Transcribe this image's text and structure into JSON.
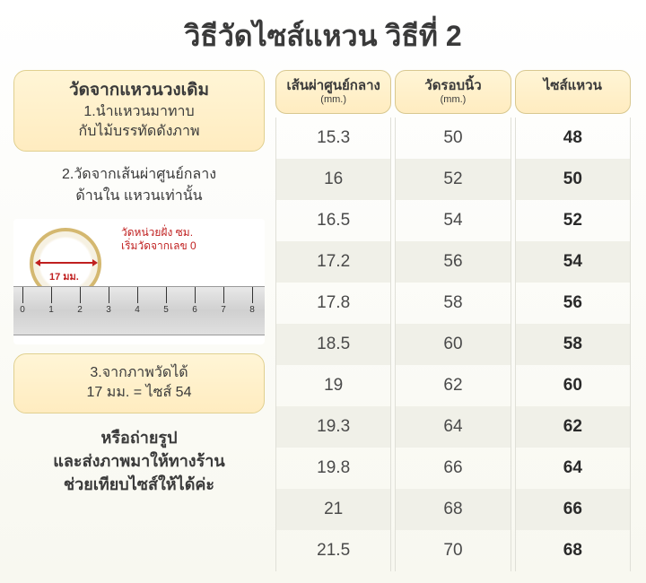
{
  "title": "วิธีวัดไซส์แหวน วิธีที่ 2",
  "left": {
    "block1_title": "วัดจากแหวนวงเดิม",
    "block1_line1": "1.นำแหวนมาทาบ",
    "block1_line2": "กับไม้บรรทัดดังภาพ",
    "step2_line1": "2.วัดจากเส้นผ่าศูนย์กลาง",
    "step2_line2": "ด้านใน แหวนเท่านั้น",
    "ruler_label_line1": "วัดหน่วยฝั่ง ซม.",
    "ruler_label_line2": "เริ่มวัดจากเลข 0",
    "ring_mm": "17 มม.",
    "block3_line1": "3.จากภาพวัดได้",
    "block3_line2": "17 มม. = ไซส์ 54",
    "final_line1": "หรือถ่ายรูป",
    "final_line2": "และส่งภาพมาให้ทางร้าน",
    "final_line3": "ช่วยเทียบไซส์ให้ได้ค่ะ"
  },
  "table": {
    "headers": [
      {
        "main": "เส้นผ่าศูนย์กลาง",
        "sub": "(mm.)"
      },
      {
        "main": "วัดรอบนิ้ว",
        "sub": "(mm.)"
      },
      {
        "main": "ไซส์แหวน",
        "sub": ""
      }
    ],
    "rows": [
      [
        "15.3",
        "50",
        "48"
      ],
      [
        "16",
        "52",
        "50"
      ],
      [
        "16.5",
        "54",
        "52"
      ],
      [
        "17.2",
        "56",
        "54"
      ],
      [
        "17.8",
        "58",
        "56"
      ],
      [
        "18.5",
        "60",
        "58"
      ],
      [
        "19",
        "62",
        "60"
      ],
      [
        "19.3",
        "64",
        "62"
      ],
      [
        "19.8",
        "66",
        "64"
      ],
      [
        "21",
        "68",
        "66"
      ],
      [
        "21.5",
        "70",
        "68"
      ]
    ]
  },
  "colors": {
    "header_bg": "#ffecc0",
    "text": "#3a3a3a",
    "red": "#c02020",
    "alt_row": "#f0f0e8"
  }
}
